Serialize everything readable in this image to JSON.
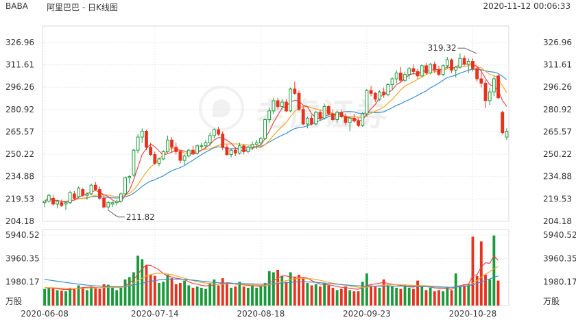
{
  "header": {
    "symbol": "BABA",
    "title": "阿里巴巴 - 日K线图",
    "timestamp": "2020-11-12 00:06:33"
  },
  "watermark": "老虎证券",
  "colors": {
    "up": "#1a9a3a",
    "down": "#e8321f",
    "ma5": "#e8454f",
    "ma10": "#f5a623",
    "ma20": "#3a8fd0",
    "vol_ma5": "#e8454f",
    "vol_ma10": "#f5a623",
    "vol_ma20": "#3a8fd0",
    "grid": "#e8e8e8",
    "text": "#333333"
  },
  "chart_data": [
    {
      "type": "candlestick",
      "price_axis": {
        "ylim": [
          204.18,
          334.0
        ],
        "ticks": [
          "326.96",
          "311.61",
          "296.26",
          "280.92",
          "265.57",
          "250.22",
          "234.88",
          "219.53",
          "204.18"
        ]
      },
      "x_ticks": [
        {
          "index": 0,
          "label": "2020-06-08"
        },
        {
          "index": 26,
          "label": "2020-07-14"
        },
        {
          "index": 51,
          "label": "2020-08-18"
        },
        {
          "index": 76,
          "label": "2020-09-23"
        },
        {
          "index": 101,
          "label": "2020-10-28"
        }
      ],
      "annotations": [
        {
          "label": "319.32",
          "index": 102,
          "value": 319.32
        },
        {
          "label": "211.82",
          "index": 15,
          "value": 211.82
        }
      ],
      "candles": [
        [
          217,
          218,
          214,
          218
        ],
        [
          218,
          223,
          217,
          222
        ],
        [
          220,
          222,
          215,
          216
        ],
        [
          216,
          219,
          213,
          218
        ],
        [
          217,
          219,
          214,
          215
        ],
        [
          216,
          218,
          212,
          217
        ],
        [
          217,
          225,
          216,
          224
        ],
        [
          223,
          225,
          219,
          220
        ],
        [
          221,
          228,
          220,
          227
        ],
        [
          226,
          227,
          221,
          222
        ],
        [
          222,
          224,
          219,
          223
        ],
        [
          223,
          230,
          222,
          229
        ],
        [
          229,
          231,
          225,
          226
        ],
        [
          226,
          228,
          219,
          220
        ],
        [
          220,
          222,
          213,
          214
        ],
        [
          214,
          218,
          211.82,
          217
        ],
        [
          216,
          218,
          214,
          217
        ],
        [
          217,
          219,
          215,
          218
        ],
        [
          218,
          224,
          217,
          223
        ],
        [
          223,
          235,
          222,
          234
        ],
        [
          234,
          236,
          230,
          235
        ],
        [
          236,
          254,
          235,
          253
        ],
        [
          253,
          264,
          251,
          262
        ],
        [
          262,
          268,
          258,
          266
        ],
        [
          266,
          267,
          253,
          255
        ],
        [
          255,
          258,
          249,
          250
        ],
        [
          250,
          252,
          243,
          244
        ],
        [
          244,
          248,
          242,
          247
        ],
        [
          247,
          253,
          246,
          252
        ],
        [
          252,
          263,
          251,
          260
        ],
        [
          260,
          262,
          252,
          255
        ],
        [
          255,
          258,
          250,
          252
        ],
        [
          252,
          253,
          244,
          246
        ],
        [
          246,
          250,
          243,
          249
        ],
        [
          249,
          254,
          248,
          253
        ],
        [
          253,
          256,
          250,
          251
        ],
        [
          251,
          257,
          250,
          256
        ],
        [
          256,
          258,
          254,
          256
        ],
        [
          256,
          260,
          254,
          258
        ],
        [
          258,
          265,
          256,
          263
        ],
        [
          263,
          268,
          261,
          267
        ],
        [
          267,
          269,
          263,
          264
        ],
        [
          264,
          266,
          253,
          255
        ],
        [
          255,
          257,
          249,
          250
        ],
        [
          250,
          254,
          248,
          253
        ],
        [
          253,
          255,
          249,
          251
        ],
        [
          251,
          258,
          250,
          256
        ],
        [
          256,
          257,
          250,
          252
        ],
        [
          252,
          256,
          251,
          255
        ],
        [
          255,
          259,
          253,
          257
        ],
        [
          257,
          260,
          254,
          258
        ],
        [
          258,
          262,
          256,
          261
        ],
        [
          261,
          275,
          260,
          274
        ],
        [
          274,
          282,
          272,
          280
        ],
        [
          280,
          289,
          278,
          287
        ],
        [
          287,
          289,
          281,
          283
        ],
        [
          283,
          288,
          281,
          286
        ],
        [
          286,
          288,
          279,
          280
        ],
        [
          280,
          296,
          279,
          295
        ],
        [
          295,
          300,
          291,
          292
        ],
        [
          292,
          294,
          280,
          281
        ],
        [
          281,
          283,
          270,
          271
        ],
        [
          271,
          276,
          268,
          275
        ],
        [
          275,
          277,
          270,
          271
        ],
        [
          271,
          280,
          270,
          279
        ],
        [
          279,
          281,
          273,
          275
        ],
        [
          275,
          285,
          274,
          283
        ],
        [
          283,
          284,
          277,
          278
        ],
        [
          278,
          281,
          273,
          274
        ],
        [
          274,
          280,
          272,
          279
        ],
        [
          279,
          281,
          275,
          276
        ],
        [
          276,
          278,
          270,
          272
        ],
        [
          272,
          276,
          266,
          275
        ],
        [
          275,
          278,
          272,
          273
        ],
        [
          273,
          275,
          269,
          270
        ],
        [
          270,
          279,
          269,
          278
        ],
        [
          278,
          295,
          276,
          294
        ],
        [
          294,
          297,
          290,
          292
        ],
        [
          292,
          293,
          286,
          288
        ],
        [
          288,
          294,
          287,
          293
        ],
        [
          293,
          296,
          289,
          291
        ],
        [
          291,
          299,
          290,
          298
        ],
        [
          298,
          303,
          294,
          302
        ],
        [
          302,
          308,
          299,
          306
        ],
        [
          306,
          310,
          300,
          301
        ],
        [
          301,
          307,
          300,
          305
        ],
        [
          305,
          310,
          302,
          309
        ],
        [
          309,
          312,
          305,
          307
        ],
        [
          307,
          309,
          302,
          304
        ],
        [
          304,
          312,
          303,
          311
        ],
        [
          311,
          313,
          305,
          306
        ],
        [
          306,
          313,
          305,
          312
        ],
        [
          312,
          314,
          306,
          308
        ],
        [
          308,
          311,
          304,
          305
        ],
        [
          305,
          312,
          304,
          311
        ],
        [
          311,
          317,
          309,
          315
        ],
        [
          315,
          316,
          306,
          308
        ],
        [
          308,
          311,
          303,
          310
        ],
        [
          310,
          319.32,
          309,
          316
        ],
        [
          316,
          318,
          311,
          312
        ],
        [
          312,
          316,
          306,
          314
        ],
        [
          314,
          316,
          307,
          309
        ],
        [
          309,
          310,
          300,
          302
        ],
        [
          302,
          306,
          296,
          299
        ],
        [
          299,
          301,
          282,
          287
        ],
        [
          287,
          296,
          284,
          293
        ],
        [
          293,
          304,
          290,
          302
        ],
        [
          304,
          305,
          288,
          289
        ],
        [
          279,
          280,
          264,
          265
        ],
        [
          262,
          268,
          260,
          266
        ]
      ]
    },
    {
      "type": "bar",
      "name": "volume",
      "unit_label": "万股",
      "ylim": [
        0,
        5940.52
      ],
      "ticks": [
        "5940.52",
        "3960.35",
        "1980.17"
      ],
      "values": [
        1400,
        1500,
        1450,
        1300,
        1250,
        1200,
        1500,
        1400,
        1700,
        1500,
        1300,
        1600,
        1450,
        1400,
        1800,
        1750,
        1500,
        1300,
        1500,
        2200,
        2400,
        2800,
        4200,
        3900,
        3400,
        2600,
        2500,
        1900,
        2000,
        2600,
        2300,
        1800,
        1900,
        2100,
        1700,
        1500,
        1600,
        1500,
        1400,
        1900,
        2200,
        1700,
        2300,
        1800,
        1500,
        1600,
        2000,
        1600,
        1500,
        1700,
        1500,
        1600,
        1900,
        2900,
        2800,
        3000,
        2500,
        2000,
        2800,
        2400,
        2600,
        2300,
        1900,
        1700,
        1800,
        1600,
        1900,
        1700,
        1500,
        1300,
        1400,
        1600,
        1300,
        1200,
        1200,
        2000,
        2700,
        1700,
        1600,
        1500,
        2200,
        1700,
        1600,
        1500,
        1400,
        1700,
        1500,
        1400,
        2100,
        1600,
        1300,
        1500,
        1200,
        1300,
        1200,
        1500,
        1300,
        2700,
        1600,
        1700,
        1800,
        5800,
        2500,
        5400,
        2600,
        2200,
        5900,
        2100
      ],
      "ma": [
        {
          "key": "ma5",
          "values": [
            1500,
            1480,
            1460,
            1420,
            1380,
            1350,
            1360,
            1400,
            1460,
            1520,
            1540,
            1560,
            1520,
            1500,
            1540,
            1580,
            1560,
            1530,
            1520,
            1660,
            1880,
            2180,
            2640,
            3120,
            3400,
            3380,
            3200,
            3000,
            2700,
            2500,
            2400,
            2300,
            2250,
            2200,
            2000,
            1850,
            1800,
            1700,
            1650,
            1680,
            1760,
            1800,
            1880,
            1920,
            1900,
            1800,
            1780,
            1740,
            1700,
            1660,
            1640,
            1620,
            1660,
            1900,
            2100,
            2300,
            2500,
            2500,
            2400,
            2400,
            2400,
            2380,
            2300,
            2100,
            1950,
            1800,
            1780,
            1740,
            1680,
            1600,
            1540,
            1520,
            1440,
            1400,
            1380,
            1480,
            1680,
            1780,
            1820,
            1880,
            1960,
            1860,
            1800,
            1760,
            1700,
            1640,
            1580,
            1560,
            1640,
            1620,
            1600,
            1560,
            1480,
            1450,
            1420,
            1420,
            1380,
            1600,
            1680,
            1760,
            1800,
            2520,
            2600,
            3240,
            3600,
            3560,
            4200,
            3800
          ]
        },
        {
          "key": "ma10",
          "values": [
            1520,
            1510,
            1500,
            1480,
            1460,
            1440,
            1420,
            1420,
            1430,
            1450,
            1460,
            1480,
            1490,
            1500,
            1520,
            1540,
            1550,
            1540,
            1530,
            1580,
            1700,
            1880,
            2100,
            2300,
            2500,
            2600,
            2680,
            2720,
            2700,
            2650,
            2600,
            2500,
            2400,
            2300,
            2200,
            2100,
            2000,
            1950,
            1900,
            1850,
            1800,
            1800,
            1800,
            1820,
            1830,
            1820,
            1800,
            1780,
            1760,
            1740,
            1720,
            1700,
            1700,
            1760,
            1840,
            1920,
            2000,
            2100,
            2180,
            2250,
            2300,
            2300,
            2280,
            2250,
            2200,
            2120,
            2040,
            1960,
            1880,
            1820,
            1760,
            1700,
            1650,
            1600,
            1550,
            1540,
            1560,
            1600,
            1640,
            1680,
            1720,
            1750,
            1760,
            1760,
            1750,
            1740,
            1720,
            1700,
            1690,
            1680,
            1660,
            1640,
            1610,
            1590,
            1570,
            1560,
            1540,
            1560,
            1600,
            1640,
            1680,
            1900,
            2100,
            2380,
            2650,
            2850,
            3100,
            3300
          ]
        },
        {
          "key": "ma20",
          "values": [
            2200,
            2150,
            2100,
            2050,
            2000,
            1950,
            1900,
            1850,
            1800,
            1760,
            1720,
            1690,
            1660,
            1640,
            1620,
            1610,
            1600,
            1600,
            1600,
            1620,
            1660,
            1720,
            1800,
            1880,
            1960,
            2040,
            2100,
            2160,
            2200,
            2220,
            2230,
            2230,
            2220,
            2200,
            2170,
            2140,
            2100,
            2060,
            2020,
            1980,
            1950,
            1920,
            1900,
            1880,
            1870,
            1860,
            1850,
            1840,
            1830,
            1820,
            1810,
            1800,
            1800,
            1810,
            1830,
            1860,
            1890,
            1920,
            1950,
            1980,
            2000,
            2000,
            1990,
            1970,
            1950,
            1920,
            1890,
            1860,
            1830,
            1800,
            1770,
            1740,
            1710,
            1680,
            1660,
            1650,
            1640,
            1640,
            1640,
            1640,
            1640,
            1640,
            1640,
            1640,
            1640,
            1640,
            1630,
            1620,
            1610,
            1600,
            1590,
            1580,
            1570,
            1560,
            1550,
            1540,
            1540,
            1560,
            1590,
            1620,
            1650,
            1760,
            1860,
            1990,
            2120,
            2240,
            2380,
            2500
          ]
        }
      ]
    }
  ]
}
